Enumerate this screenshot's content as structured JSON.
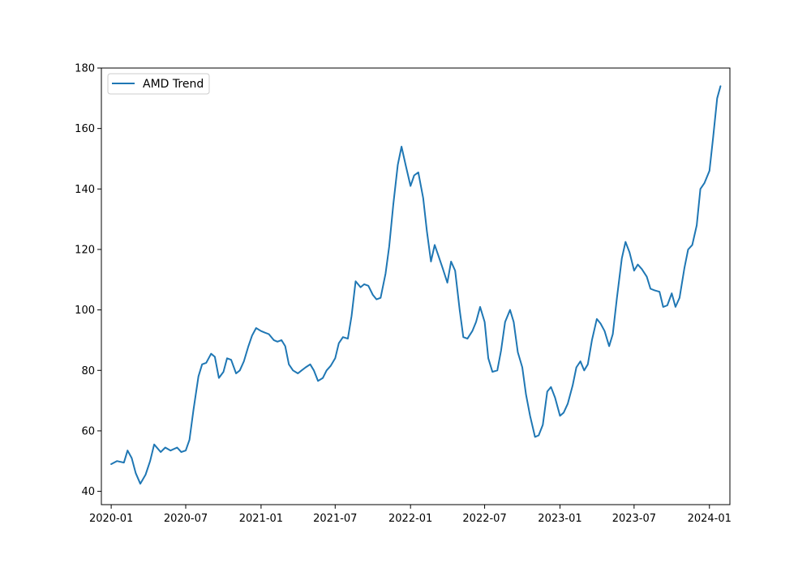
{
  "chart_data": {
    "type": "line",
    "title": "",
    "xlabel": "",
    "ylabel": "",
    "x_range": [
      "2019-12-08",
      "2024-02-20"
    ],
    "ylim": [
      35.6,
      180
    ],
    "grid": false,
    "legend_placement": "top-left",
    "x_ticks": [
      "2020-01",
      "2020-07",
      "2021-01",
      "2021-07",
      "2022-01",
      "2022-07",
      "2023-01",
      "2023-07",
      "2024-01"
    ],
    "y_ticks": [
      40,
      60,
      80,
      100,
      120,
      140,
      160,
      180
    ],
    "colors": {
      "series": "#1f77b4",
      "axes": "#000000",
      "background": "#ffffff"
    },
    "series": [
      {
        "name": "AMD Trend",
        "points": [
          [
            "2020-01-01",
            49.0
          ],
          [
            "2020-01-15",
            50.0
          ],
          [
            "2020-02-01",
            49.5
          ],
          [
            "2020-02-10",
            53.5
          ],
          [
            "2020-02-20",
            51.0
          ],
          [
            "2020-03-01",
            46.0
          ],
          [
            "2020-03-12",
            42.5
          ],
          [
            "2020-03-25",
            45.5
          ],
          [
            "2020-04-05",
            50.0
          ],
          [
            "2020-04-15",
            55.5
          ],
          [
            "2020-05-01",
            53.0
          ],
          [
            "2020-05-12",
            54.5
          ],
          [
            "2020-05-25",
            53.5
          ],
          [
            "2020-06-10",
            54.5
          ],
          [
            "2020-06-20",
            53.0
          ],
          [
            "2020-07-01",
            53.5
          ],
          [
            "2020-07-10",
            57.0
          ],
          [
            "2020-07-20",
            67.0
          ],
          [
            "2020-08-01",
            78.0
          ],
          [
            "2020-08-10",
            82.0
          ],
          [
            "2020-08-20",
            82.5
          ],
          [
            "2020-09-01",
            85.5
          ],
          [
            "2020-09-10",
            84.5
          ],
          [
            "2020-09-20",
            77.5
          ],
          [
            "2020-10-01",
            79.5
          ],
          [
            "2020-10-10",
            84.0
          ],
          [
            "2020-10-20",
            83.5
          ],
          [
            "2020-11-01",
            79.0
          ],
          [
            "2020-11-10",
            80.0
          ],
          [
            "2020-11-20",
            83.0
          ],
          [
            "2020-12-01",
            88.0
          ],
          [
            "2020-12-10",
            91.5
          ],
          [
            "2020-12-20",
            94.0
          ],
          [
            "2021-01-01",
            93.0
          ],
          [
            "2021-01-10",
            92.5
          ],
          [
            "2021-01-20",
            92.0
          ],
          [
            "2021-02-01",
            90.0
          ],
          [
            "2021-02-10",
            89.5
          ],
          [
            "2021-02-20",
            90.0
          ],
          [
            "2021-03-01",
            88.0
          ],
          [
            "2021-03-10",
            82.0
          ],
          [
            "2021-03-20",
            80.0
          ],
          [
            "2021-04-01",
            79.0
          ],
          [
            "2021-04-10",
            80.0
          ],
          [
            "2021-04-20",
            81.0
          ],
          [
            "2021-05-01",
            82.0
          ],
          [
            "2021-05-10",
            80.0
          ],
          [
            "2021-05-20",
            76.5
          ],
          [
            "2021-06-01",
            77.5
          ],
          [
            "2021-06-10",
            80.0
          ],
          [
            "2021-06-20",
            81.5
          ],
          [
            "2021-07-01",
            84.0
          ],
          [
            "2021-07-10",
            89.0
          ],
          [
            "2021-07-20",
            91.0
          ],
          [
            "2021-08-01",
            90.5
          ],
          [
            "2021-08-10",
            98.0
          ],
          [
            "2021-08-20",
            109.5
          ],
          [
            "2021-09-01",
            107.5
          ],
          [
            "2021-09-10",
            108.5
          ],
          [
            "2021-09-20",
            108.0
          ],
          [
            "2021-10-01",
            105.0
          ],
          [
            "2021-10-10",
            103.5
          ],
          [
            "2021-10-20",
            104.0
          ],
          [
            "2021-11-01",
            112.0
          ],
          [
            "2021-11-10",
            121.0
          ],
          [
            "2021-11-20",
            135.0
          ],
          [
            "2021-12-01",
            148.0
          ],
          [
            "2021-12-10",
            154.0
          ],
          [
            "2021-12-20",
            148.0
          ],
          [
            "2022-01-01",
            141.0
          ],
          [
            "2022-01-10",
            144.5
          ],
          [
            "2022-01-20",
            145.5
          ],
          [
            "2022-02-01",
            137.0
          ],
          [
            "2022-02-10",
            126.0
          ],
          [
            "2022-02-20",
            116.0
          ],
          [
            "2022-03-01",
            121.5
          ],
          [
            "2022-03-10",
            118.0
          ],
          [
            "2022-03-20",
            114.0
          ],
          [
            "2022-04-01",
            109.0
          ],
          [
            "2022-04-10",
            116.0
          ],
          [
            "2022-04-20",
            113.0
          ],
          [
            "2022-05-01",
            100.0
          ],
          [
            "2022-05-10",
            91.0
          ],
          [
            "2022-05-20",
            90.5
          ],
          [
            "2022-06-01",
            93.0
          ],
          [
            "2022-06-10",
            96.0
          ],
          [
            "2022-06-20",
            101.0
          ],
          [
            "2022-07-01",
            96.0
          ],
          [
            "2022-07-10",
            84.0
          ],
          [
            "2022-07-20",
            79.5
          ],
          [
            "2022-08-01",
            80.0
          ],
          [
            "2022-08-10",
            86.5
          ],
          [
            "2022-08-20",
            96.0
          ],
          [
            "2022-09-01",
            100.0
          ],
          [
            "2022-09-10",
            96.0
          ],
          [
            "2022-09-20",
            86.0
          ],
          [
            "2022-10-01",
            81.0
          ],
          [
            "2022-10-10",
            72.0
          ],
          [
            "2022-10-20",
            65.0
          ],
          [
            "2022-11-01",
            58.0
          ],
          [
            "2022-11-10",
            58.5
          ],
          [
            "2022-11-20",
            62.0
          ],
          [
            "2022-12-01",
            73.0
          ],
          [
            "2022-12-10",
            74.5
          ],
          [
            "2022-12-20",
            71.0
          ],
          [
            "2023-01-01",
            65.0
          ],
          [
            "2023-01-10",
            66.0
          ],
          [
            "2023-01-20",
            69.0
          ],
          [
            "2023-02-01",
            75.0
          ],
          [
            "2023-02-10",
            81.0
          ],
          [
            "2023-02-20",
            83.0
          ],
          [
            "2023-03-01",
            80.0
          ],
          [
            "2023-03-10",
            82.0
          ],
          [
            "2023-03-20",
            90.0
          ],
          [
            "2023-04-01",
            97.0
          ],
          [
            "2023-04-10",
            95.5
          ],
          [
            "2023-04-20",
            93.0
          ],
          [
            "2023-05-01",
            88.0
          ],
          [
            "2023-05-10",
            92.0
          ],
          [
            "2023-05-20",
            104.0
          ],
          [
            "2023-06-01",
            117.0
          ],
          [
            "2023-06-10",
            122.5
          ],
          [
            "2023-06-20",
            119.0
          ],
          [
            "2023-07-01",
            113.0
          ],
          [
            "2023-07-10",
            115.0
          ],
          [
            "2023-07-20",
            113.5
          ],
          [
            "2023-08-01",
            111.0
          ],
          [
            "2023-08-10",
            107.0
          ],
          [
            "2023-08-20",
            106.5
          ],
          [
            "2023-09-01",
            106.0
          ],
          [
            "2023-09-10",
            101.0
          ],
          [
            "2023-09-20",
            101.5
          ],
          [
            "2023-10-01",
            105.5
          ],
          [
            "2023-10-10",
            101.0
          ],
          [
            "2023-10-20",
            104.0
          ],
          [
            "2023-11-01",
            114.0
          ],
          [
            "2023-11-10",
            120.0
          ],
          [
            "2023-11-20",
            121.5
          ],
          [
            "2023-12-01",
            128.0
          ],
          [
            "2023-12-10",
            140.0
          ],
          [
            "2023-12-20",
            142.0
          ],
          [
            "2024-01-01",
            146.0
          ],
          [
            "2024-01-10",
            157.0
          ],
          [
            "2024-01-20",
            170.0
          ],
          [
            "2024-01-28",
            174.0
          ]
        ]
      }
    ]
  }
}
